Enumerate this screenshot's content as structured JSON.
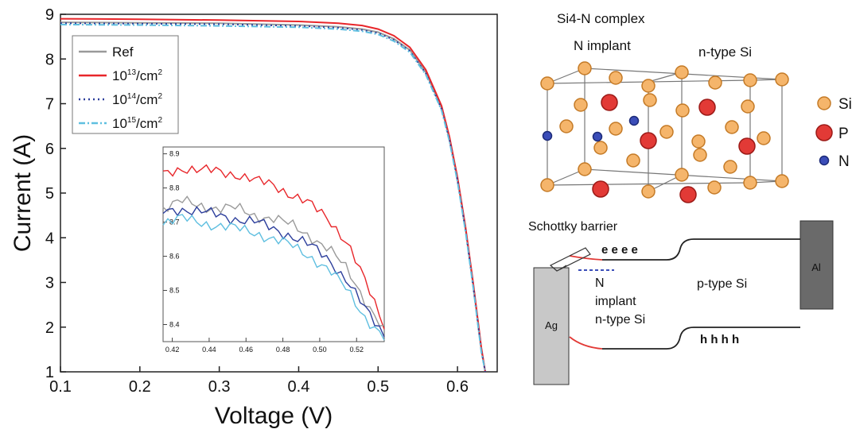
{
  "chart_data": {
    "type": "line",
    "xlabel": "Voltage (V)",
    "ylabel": "Current (A)",
    "xlim": [
      0.1,
      0.65
    ],
    "ylim": [
      1,
      9
    ],
    "xticks": [
      0.1,
      0.2,
      0.3,
      0.4,
      0.5,
      0.6
    ],
    "xtick_labels": [
      "0.1",
      "0.2",
      "0.3",
      "0.4",
      "0.5",
      "0.6"
    ],
    "yticks": [
      1,
      2,
      3,
      4,
      5,
      6,
      7,
      8,
      9
    ],
    "ytick_labels": [
      "1",
      "2",
      "3",
      "4",
      "5",
      "6",
      "7",
      "8",
      "9"
    ],
    "grid": false,
    "legend_position": "top-left",
    "series": [
      {
        "name": "Ref",
        "color": "#9a9a9a",
        "dash": "solid",
        "x": [
          0.1,
          0.2,
          0.3,
          0.4,
          0.45,
          0.48,
          0.5,
          0.52,
          0.54,
          0.56,
          0.58,
          0.59,
          0.6,
          0.61,
          0.62,
          0.63,
          0.635
        ],
        "y": [
          8.82,
          8.81,
          8.8,
          8.76,
          8.72,
          8.67,
          8.6,
          8.45,
          8.2,
          7.7,
          6.9,
          6.2,
          5.3,
          4.2,
          2.9,
          1.5,
          1.0
        ]
      },
      {
        "name": "10^13/cm^2",
        "color": "#e8262a",
        "dash": "solid",
        "x": [
          0.1,
          0.2,
          0.3,
          0.4,
          0.45,
          0.48,
          0.5,
          0.52,
          0.54,
          0.56,
          0.58,
          0.59,
          0.6,
          0.61,
          0.62,
          0.63,
          0.635
        ],
        "y": [
          8.9,
          8.89,
          8.87,
          8.84,
          8.8,
          8.75,
          8.67,
          8.52,
          8.26,
          7.76,
          6.95,
          6.25,
          5.35,
          4.25,
          2.95,
          1.55,
          1.0
        ]
      },
      {
        "name": "10^14/cm^2",
        "color": "#2c3e9c",
        "dash": "dotted",
        "x": [
          0.1,
          0.2,
          0.3,
          0.4,
          0.45,
          0.48,
          0.5,
          0.52,
          0.54,
          0.56,
          0.58,
          0.59,
          0.6,
          0.61,
          0.62,
          0.63,
          0.635
        ],
        "y": [
          8.8,
          8.79,
          8.78,
          8.74,
          8.7,
          8.65,
          8.58,
          8.43,
          8.18,
          7.68,
          6.88,
          6.18,
          5.28,
          4.18,
          2.88,
          1.48,
          1.0
        ]
      },
      {
        "name": "10^15/cm^2",
        "color": "#5fbfe0",
        "dash": "dashdot",
        "x": [
          0.1,
          0.2,
          0.3,
          0.4,
          0.45,
          0.48,
          0.5,
          0.52,
          0.54,
          0.56,
          0.58,
          0.59,
          0.6,
          0.61,
          0.62,
          0.63,
          0.635
        ],
        "y": [
          8.77,
          8.76,
          8.74,
          8.71,
          8.67,
          8.62,
          8.55,
          8.4,
          8.15,
          7.65,
          6.85,
          6.15,
          5.25,
          4.15,
          2.85,
          1.45,
          1.0
        ]
      }
    ],
    "legend_labels": [
      {
        "base": "Ref",
        "sup": ""
      },
      {
        "base": "10",
        "sup": "13",
        "unit": "/cm",
        "unit_sup": "2"
      },
      {
        "base": "10",
        "sup": "14",
        "unit": "/cm",
        "unit_sup": "2"
      },
      {
        "base": "10",
        "sup": "15",
        "unit": "/cm",
        "unit_sup": "2"
      }
    ],
    "inset": {
      "xlim": [
        0.415,
        0.535
      ],
      "ylim": [
        8.35,
        8.92
      ],
      "xticks": [
        0.42,
        0.44,
        0.46,
        0.48,
        0.5,
        0.52
      ],
      "xtick_labels": [
        "0.42",
        "0.44",
        "0.46",
        "0.48",
        "0.50",
        "0.52"
      ],
      "yticks": [
        8.4,
        8.5,
        8.6,
        8.7,
        8.8,
        8.9
      ],
      "ytick_labels": [
        "8.4",
        "8.5",
        "8.6",
        "8.7",
        "8.8",
        "8.9"
      ],
      "series": [
        {
          "color": "#e8262a",
          "x": [
            0.415,
            0.425,
            0.435,
            0.445,
            0.455,
            0.465,
            0.475,
            0.485,
            0.495,
            0.505,
            0.515,
            0.525,
            0.535
          ],
          "y": [
            8.84,
            8.86,
            8.85,
            8.85,
            8.84,
            8.82,
            8.81,
            8.78,
            8.75,
            8.71,
            8.64,
            8.52,
            8.4
          ]
        },
        {
          "color": "#9a9a9a",
          "x": [
            0.415,
            0.425,
            0.435,
            0.445,
            0.455,
            0.465,
            0.475,
            0.485,
            0.495,
            0.505,
            0.515,
            0.525,
            0.535
          ],
          "y": [
            8.74,
            8.76,
            8.75,
            8.74,
            8.74,
            8.72,
            8.71,
            8.69,
            8.66,
            8.62,
            8.56,
            8.47,
            8.38
          ]
        },
        {
          "color": "#2c3e9c",
          "x": [
            0.415,
            0.425,
            0.435,
            0.445,
            0.455,
            0.465,
            0.475,
            0.485,
            0.495,
            0.505,
            0.515,
            0.525,
            0.535
          ],
          "y": [
            8.73,
            8.74,
            8.73,
            8.72,
            8.71,
            8.7,
            8.68,
            8.66,
            8.63,
            8.59,
            8.53,
            8.44,
            8.37
          ]
        },
        {
          "color": "#5fbfe0",
          "x": [
            0.415,
            0.425,
            0.435,
            0.445,
            0.455,
            0.465,
            0.475,
            0.485,
            0.495,
            0.505,
            0.515,
            0.525,
            0.535
          ],
          "y": [
            8.7,
            8.71,
            8.7,
            8.69,
            8.68,
            8.67,
            8.65,
            8.63,
            8.6,
            8.56,
            8.5,
            8.42,
            8.36
          ]
        }
      ]
    }
  },
  "diagram": {
    "lattice_title": "Si4-N complex",
    "label_n_implant": "N implant",
    "label_n_type_top": "n-type Si",
    "legend": [
      {
        "label": "Si",
        "color": "#f5b56b"
      },
      {
        "label": "P",
        "color": "#e23a36"
      },
      {
        "label": "N",
        "color": "#3b4db8"
      }
    ],
    "band": {
      "schottky_label": "Schottky barrier",
      "electrons": "e e e e",
      "holes": "h h h h",
      "n_label": "N",
      "implant_label": "implant",
      "n_type_label": "n-type Si",
      "p_type_label": "p-type Si",
      "ag_label": "Ag",
      "al_label": "Al"
    }
  }
}
